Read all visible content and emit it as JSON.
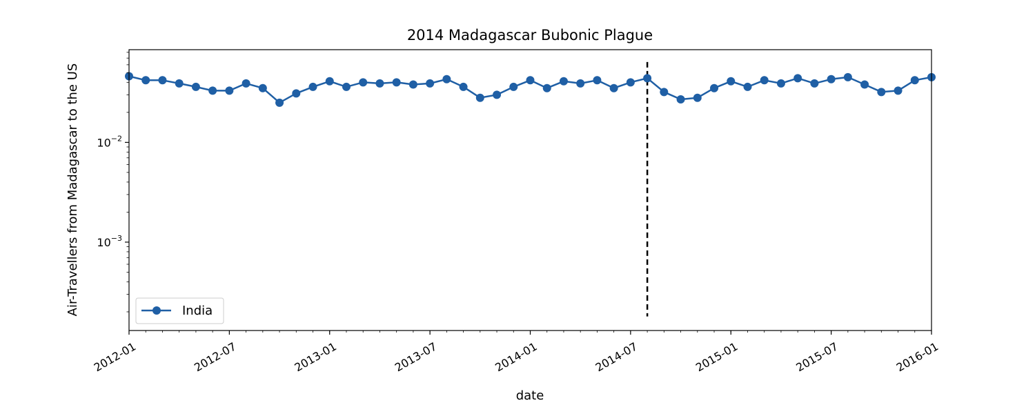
{
  "chart_data": {
    "type": "line",
    "title": "2014 Madagascar Bubonic Plague",
    "xlabel": "date",
    "ylabel": "Air-Travellers from Madagascar to the US",
    "yscale": "log",
    "grid": false,
    "legend_position": "lower-left",
    "xlim": [
      "2012-01",
      "2016-01"
    ],
    "ylim": [
      0.00013,
      0.085
    ],
    "x_ticks": [
      "2012-01",
      "2012-07",
      "2013-01",
      "2013-07",
      "2014-01",
      "2014-07",
      "2015-01",
      "2015-07",
      "2016-01"
    ],
    "y_ticks": [
      {
        "value": 0.01,
        "base": "10",
        "exp": "−2"
      },
      {
        "value": 0.001,
        "base": "10",
        "exp": "−3"
      }
    ],
    "event_line": {
      "x": "2014-08",
      "y_range": [
        0.00018,
        0.064
      ],
      "style": "dashed",
      "color": "#000000"
    },
    "series": [
      {
        "name": "India",
        "color": "#1f5fa5",
        "marker": "circle",
        "x": [
          "2012-01",
          "2012-02",
          "2012-03",
          "2012-04",
          "2012-05",
          "2012-06",
          "2012-07",
          "2012-08",
          "2012-09",
          "2012-10",
          "2012-11",
          "2012-12",
          "2013-01",
          "2013-02",
          "2013-03",
          "2013-04",
          "2013-05",
          "2013-06",
          "2013-07",
          "2013-08",
          "2013-09",
          "2013-10",
          "2013-11",
          "2013-12",
          "2014-01",
          "2014-02",
          "2014-03",
          "2014-04",
          "2014-05",
          "2014-06",
          "2014-07",
          "2014-08",
          "2014-09",
          "2014-10",
          "2014-11",
          "2014-12",
          "2015-01",
          "2015-02",
          "2015-03",
          "2015-04",
          "2015-05",
          "2015-06",
          "2015-07",
          "2015-08",
          "2015-09",
          "2015-10",
          "2015-11",
          "2015-12",
          "2016-01"
        ],
        "values": [
          0.046,
          0.042,
          0.042,
          0.039,
          0.036,
          0.033,
          0.033,
          0.039,
          0.035,
          0.025,
          0.031,
          0.036,
          0.041,
          0.036,
          0.04,
          0.039,
          0.04,
          0.038,
          0.039,
          0.043,
          0.036,
          0.028,
          0.03,
          0.036,
          0.042,
          0.035,
          0.041,
          0.039,
          0.042,
          0.035,
          0.04,
          0.044,
          0.032,
          0.027,
          0.028,
          0.035,
          0.041,
          0.036,
          0.042,
          0.039,
          0.044,
          0.039,
          0.043,
          0.045,
          0.038,
          0.032,
          0.033,
          0.042,
          0.045
        ]
      }
    ]
  }
}
